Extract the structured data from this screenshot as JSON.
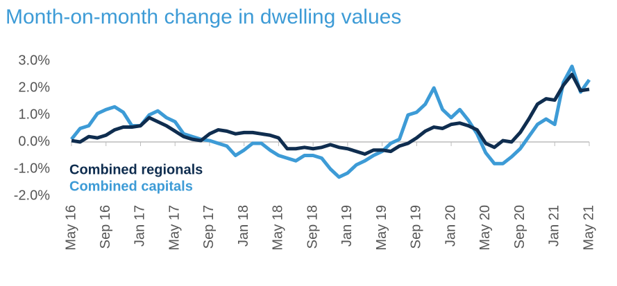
{
  "chart_data": {
    "type": "line",
    "title": "Month-on-month change in dwelling values",
    "categories": [
      "May 16",
      null,
      null,
      null,
      "Sep 16",
      null,
      null,
      null,
      "Jan 17",
      null,
      null,
      null,
      "May 17",
      null,
      null,
      null,
      "Sep 17",
      null,
      null,
      null,
      "Jan 18",
      null,
      null,
      null,
      "May 18",
      null,
      null,
      null,
      "Sep 18",
      null,
      null,
      null,
      "Jan 19",
      null,
      null,
      null,
      "May 19",
      null,
      null,
      null,
      "Sep 19",
      null,
      null,
      null,
      "Jan 20",
      null,
      null,
      null,
      "May 20",
      null,
      null,
      null,
      "Sep 20",
      null,
      null,
      null,
      "Jan 21",
      null,
      null,
      null,
      "May 21"
    ],
    "series": [
      {
        "name": "Combined regionals",
        "color": "#0f2d4f",
        "values": [
          0.05,
          0.0,
          0.2,
          0.15,
          0.25,
          0.45,
          0.55,
          0.55,
          0.6,
          0.9,
          0.75,
          0.6,
          0.4,
          0.2,
          0.1,
          0.05,
          0.3,
          0.45,
          0.4,
          0.3,
          0.35,
          0.35,
          0.3,
          0.25,
          0.15,
          -0.25,
          -0.25,
          -0.2,
          -0.25,
          -0.2,
          -0.1,
          -0.2,
          -0.25,
          -0.35,
          -0.45,
          -0.3,
          -0.3,
          -0.35,
          -0.15,
          -0.05,
          0.15,
          0.4,
          0.55,
          0.5,
          0.65,
          0.7,
          0.6,
          0.45,
          -0.05,
          -0.2,
          0.05,
          0.0,
          0.35,
          0.85,
          1.4,
          1.6,
          1.55,
          2.1,
          2.5,
          1.9,
          1.95
        ]
      },
      {
        "name": "Combined capitals",
        "color": "#3d9bd6",
        "values": [
          0.1,
          0.5,
          0.6,
          1.05,
          1.2,
          1.3,
          1.1,
          0.6,
          0.6,
          1.0,
          1.15,
          0.9,
          0.75,
          0.3,
          0.2,
          0.1,
          0.05,
          -0.05,
          -0.15,
          -0.5,
          -0.3,
          -0.05,
          -0.05,
          -0.3,
          -0.5,
          -0.6,
          -0.7,
          -0.5,
          -0.5,
          -0.6,
          -1.0,
          -1.3,
          -1.15,
          -0.85,
          -0.7,
          -0.5,
          -0.35,
          -0.05,
          0.1,
          1.0,
          1.1,
          1.4,
          2.0,
          1.2,
          0.9,
          1.2,
          0.8,
          0.3,
          -0.4,
          -0.8,
          -0.8,
          -0.55,
          -0.25,
          0.2,
          0.65,
          0.85,
          0.65,
          2.2,
          2.8,
          1.85,
          2.3
        ]
      }
    ],
    "ylim": [
      -2,
      3
    ],
    "yticks": [
      {
        "value": -2,
        "label": "-2.0%"
      },
      {
        "value": -1,
        "label": "-1.0%"
      },
      {
        "value": 0,
        "label": "0.0%"
      },
      {
        "value": 1,
        "label": "1.0%"
      },
      {
        "value": 2,
        "label": "2.0%"
      },
      {
        "value": 3,
        "label": "3.0%"
      }
    ],
    "legend": "left"
  }
}
